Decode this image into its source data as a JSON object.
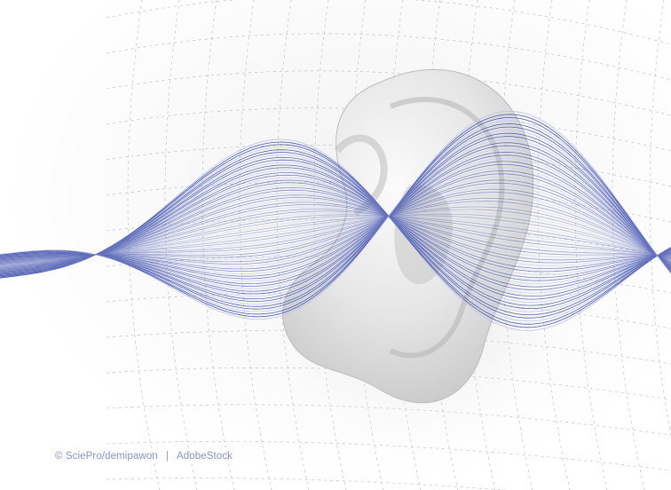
{
  "image": {
    "credit_owner": "© SciePro/demipawon",
    "credit_separator": "|",
    "credit_source": "AdobeStock",
    "colors": {
      "wave": "#3a4aa8",
      "wave_light": "#b8bfe6",
      "ear": "#d9d9d9",
      "grid": "#9a9a9a",
      "credit_text": "#8a93c9",
      "background": "#ffffff"
    }
  }
}
